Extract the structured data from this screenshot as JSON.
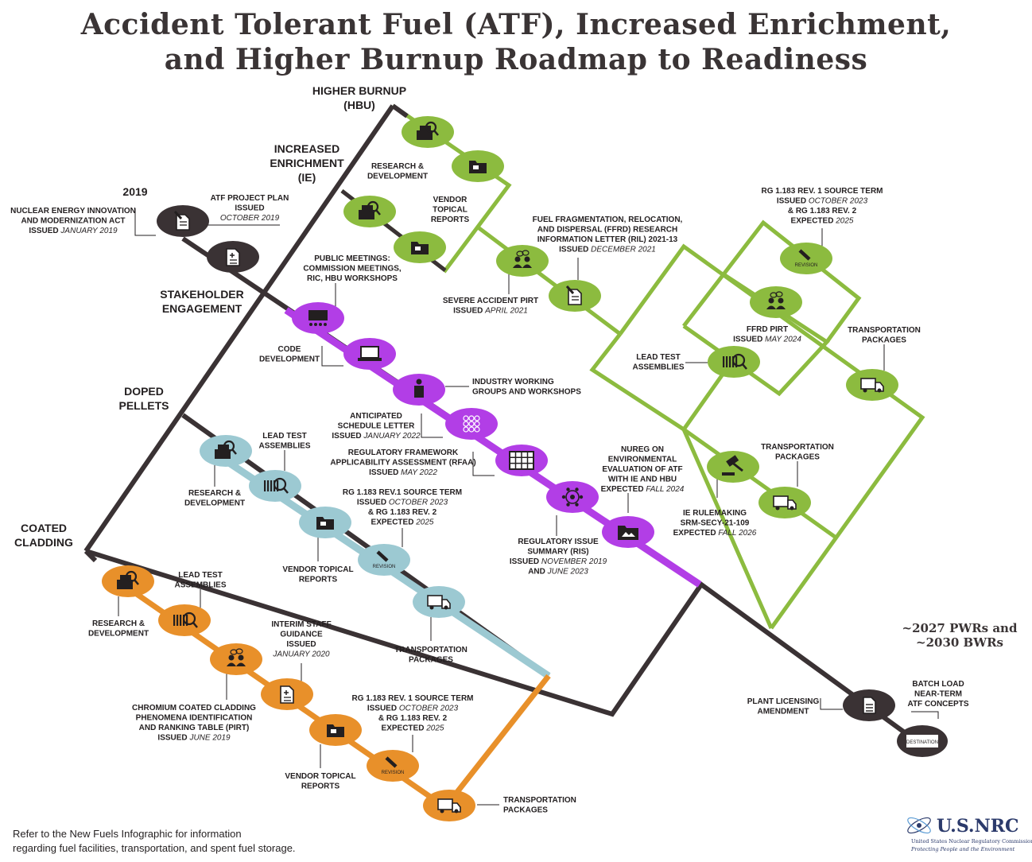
{
  "title": {
    "line1": "Accident Tolerant Fuel (ATF), Increased Enrichment,",
    "line2": "and Higher Burnup Roadmap to Readiness"
  },
  "tracks": {
    "hbu": [
      "HIGHER BURNUP",
      "(HBU)"
    ],
    "ie": [
      "INCREASED",
      "ENRICHMENT",
      "(IE)"
    ],
    "stakeholder": [
      "STAKEHOLDER",
      "ENGAGEMENT"
    ],
    "doped": [
      "DOPED",
      "PELLETS"
    ],
    "coated": [
      "COATED",
      "CLADDING"
    ]
  },
  "year_label": "2019",
  "goal": [
    "~2027 PWRs and",
    "~2030 BWRs"
  ],
  "colors": {
    "dark": "#3a3234",
    "green": "#8cbb3f",
    "purple": "#b23ee6",
    "blue": "#9cc9d2",
    "orange": "#e8902a"
  },
  "icon_texts": {
    "revision": "REVISION",
    "destination": "DESTINATION"
  },
  "labels": {
    "ne_act": [
      "NUCLEAR ENERGY INNOVATION",
      "AND MODERNIZATION ACT",
      "ISSUED |JANUARY 2019|"
    ],
    "atf_plan": [
      "ATF PROJECT PLAN",
      "ISSUED",
      "|OCTOBER 2019|"
    ],
    "public_meetings": [
      "PUBLIC MEETINGS:",
      "COMMISSION MEETINGS,",
      "RIC, HBU WORKSHOPS"
    ],
    "code_dev": [
      "CODE",
      "DEVELOPMENT"
    ],
    "industry_groups": [
      "INDUSTRY WORKING",
      "GROUPS AND WORKSHOPS"
    ],
    "schedule_letter": [
      "ANTICIPATED",
      "SCHEDULE LETTER",
      "ISSUED |JANUARY 2022|"
    ],
    "rfaa": [
      "REGULATORY FRAMEWORK",
      "APPLICABILITY ASSESSMENT (RFAA)",
      "ISSUED |MAY 2022|"
    ],
    "ris": [
      "REGULATORY ISSUE",
      "SUMMARY (RIS)",
      "ISSUED |NOVEMBER 2019|",
      "AND |JUNE 2023|"
    ],
    "nureg": [
      "NUREG ON",
      "ENVIRONMENTAL",
      "EVALUATION OF ATF",
      "WITH IE AND HBU",
      "EXPECTED |FALL 2024|"
    ],
    "hbu_rd": [
      "RESEARCH &",
      "DEVELOPMENT"
    ],
    "ie_vendor": [
      "VENDOR",
      "TOPICAL",
      "REPORTS"
    ],
    "severe_pirt": [
      "SEVERE ACCIDENT PIRT",
      "ISSUED |APRIL 2021|"
    ],
    "ffrd_ril": [
      "FUEL FRAGMENTATION, RELOCATION,",
      "AND DISPERSAL (FFRD) RESEARCH",
      "INFORMATION LETTER (RIL) 2021-13",
      "ISSUED |DECEMBER 2021|"
    ],
    "rg_green": [
      "RG 1.183 REV. 1 SOURCE TERM",
      "ISSUED |OCTOBER 2023|",
      "& RG 1.183 REV. 2",
      "EXPECTED |2025|"
    ],
    "ffrd_pirt": [
      "FFRD PIRT",
      "ISSUED |MAY 2024|"
    ],
    "green_lta": [
      "LEAD TEST",
      "ASSEMBLIES"
    ],
    "green_transport_top": [
      "TRANSPORTATION",
      "PACKAGES"
    ],
    "green_transport_bot": [
      "TRANSPORTATION",
      "PACKAGES"
    ],
    "ie_rulemaking": [
      "IE RULEMAKING",
      "SRM-SECY-21-109",
      "EXPECTED |FALL 2026|"
    ],
    "dp_lta": [
      "LEAD TEST",
      "ASSEMBLIES"
    ],
    "dp_rd": [
      "RESEARCH &",
      "DEVELOPMENT"
    ],
    "dp_vendor": [
      "VENDOR TOPICAL",
      "REPORTS"
    ],
    "dp_rg": [
      "RG 1.183 REV.1 SOURCE TERM",
      "ISSUED |OCTOBER 2023|",
      "& RG 1.183 REV. 2",
      "EXPECTED |2025|"
    ],
    "dp_transport": [
      "TRANSPORTATION",
      "PACKAGES"
    ],
    "cc_lta": [
      "LEAD TEST",
      "ASSEMBLIES"
    ],
    "cc_rd": [
      "RESEARCH &",
      "DEVELOPMENT"
    ],
    "cc_isg": [
      "INTERIM STAFF",
      "GUIDANCE",
      "ISSUED",
      "|JANUARY 2020|"
    ],
    "cc_pirt": [
      "CHROMIUM COATED CLADDING",
      "PHENOMENA IDENTIFICATION",
      "AND RANKING TABLE (PIRT)",
      "ISSUED |JUNE 2019|"
    ],
    "cc_rg": [
      "RG 1.183 REV. 1 SOURCE TERM",
      "ISSUED |OCTOBER 2023|",
      "& RG 1.183 REV. 2",
      "EXPECTED |2025|"
    ],
    "cc_vendor": [
      "VENDOR TOPICAL",
      "REPORTS"
    ],
    "cc_transport": [
      "TRANSPORTATION",
      "PACKAGES"
    ],
    "plant_licensing": [
      "PLANT LICENSING",
      "AMENDMENT"
    ],
    "batch_load": [
      "BATCH LOAD",
      "NEAR-TERM",
      "ATF CONCEPTS"
    ]
  },
  "footnote": [
    "Refer to the New Fuels Infographic for information",
    "regarding fuel facilities, transportation, and spent fuel storage."
  ],
  "logo": {
    "name": "U.S.NRC",
    "subtitle": "United States Nuclear Regulatory Commission",
    "tagline": "Protecting People and the Environment"
  }
}
